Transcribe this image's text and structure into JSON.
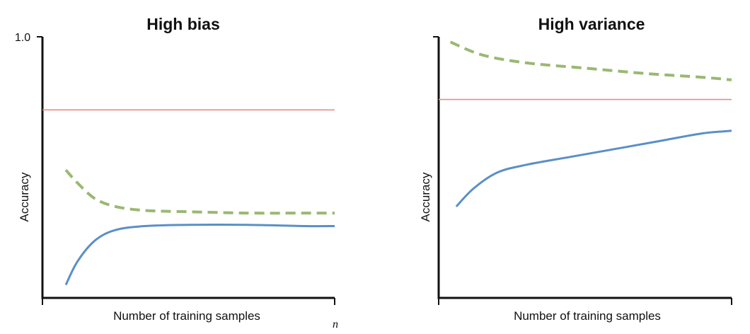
{
  "chart_data": [
    {
      "type": "line",
      "title": "High bias",
      "xlabel": "Number of training samples",
      "ylabel": "Accuracy",
      "x_end_label": "n",
      "yticks": [
        "1.0"
      ],
      "ylim": [
        0,
        1.0
      ],
      "xlim": [
        0,
        1
      ],
      "grid": false,
      "series": [
        {
          "color": "#e98b8b",
          "style": "solid",
          "x": [
            0,
            1
          ],
          "y": [
            0.72,
            0.72
          ]
        },
        {
          "color": "#9ab872",
          "style": "dashed",
          "x": [
            0.08,
            0.12,
            0.18,
            0.25,
            0.35,
            0.5,
            0.7,
            0.9,
            1.0
          ],
          "y": [
            0.49,
            0.44,
            0.38,
            0.35,
            0.335,
            0.33,
            0.325,
            0.325,
            0.325
          ]
        },
        {
          "color": "#5b8fc7",
          "style": "solid",
          "x": [
            0.08,
            0.12,
            0.18,
            0.25,
            0.35,
            0.5,
            0.7,
            0.9,
            1.0
          ],
          "y": [
            0.05,
            0.14,
            0.22,
            0.26,
            0.275,
            0.28,
            0.28,
            0.275,
            0.275
          ]
        }
      ]
    },
    {
      "type": "line",
      "title": "High variance",
      "xlabel": "Number of training samples",
      "ylabel": "Accuracy",
      "ylim": [
        0,
        1.0
      ],
      "xlim": [
        0,
        1
      ],
      "grid": false,
      "series": [
        {
          "color": "#e98b8b",
          "style": "solid",
          "x": [
            0,
            1
          ],
          "y": [
            0.76,
            0.76
          ]
        },
        {
          "color": "#9ab872",
          "style": "dashed",
          "x": [
            0.04,
            0.15,
            0.3,
            0.5,
            0.7,
            0.9,
            1.0
          ],
          "y": [
            0.98,
            0.93,
            0.9,
            0.88,
            0.86,
            0.845,
            0.835
          ]
        },
        {
          "color": "#5b8fc7",
          "style": "solid",
          "x": [
            0.06,
            0.12,
            0.2,
            0.3,
            0.45,
            0.6,
            0.75,
            0.9,
            1.0
          ],
          "y": [
            0.35,
            0.42,
            0.48,
            0.51,
            0.54,
            0.57,
            0.6,
            0.63,
            0.64
          ]
        }
      ]
    }
  ]
}
